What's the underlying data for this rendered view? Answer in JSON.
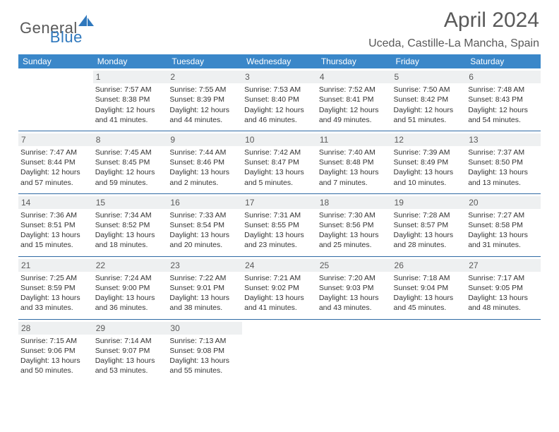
{
  "brand": {
    "part1": "General",
    "part2": "Blue"
  },
  "title": "April 2024",
  "location": "Uceda, Castille-La Mancha, Spain",
  "colors": {
    "header_bg": "#3a87c9",
    "header_text": "#ffffff",
    "rule": "#2f6aa4",
    "daynum_bg": "#eef0f1",
    "brand_gray": "#595959",
    "brand_blue": "#2f78bd"
  },
  "day_headers": [
    "Sunday",
    "Monday",
    "Tuesday",
    "Wednesday",
    "Thursday",
    "Friday",
    "Saturday"
  ],
  "weeks": [
    [
      {
        "n": "",
        "sunrise": "",
        "sunset": "",
        "daylight": ""
      },
      {
        "n": "1",
        "sunrise": "Sunrise: 7:57 AM",
        "sunset": "Sunset: 8:38 PM",
        "daylight": "Daylight: 12 hours and 41 minutes."
      },
      {
        "n": "2",
        "sunrise": "Sunrise: 7:55 AM",
        "sunset": "Sunset: 8:39 PM",
        "daylight": "Daylight: 12 hours and 44 minutes."
      },
      {
        "n": "3",
        "sunrise": "Sunrise: 7:53 AM",
        "sunset": "Sunset: 8:40 PM",
        "daylight": "Daylight: 12 hours and 46 minutes."
      },
      {
        "n": "4",
        "sunrise": "Sunrise: 7:52 AM",
        "sunset": "Sunset: 8:41 PM",
        "daylight": "Daylight: 12 hours and 49 minutes."
      },
      {
        "n": "5",
        "sunrise": "Sunrise: 7:50 AM",
        "sunset": "Sunset: 8:42 PM",
        "daylight": "Daylight: 12 hours and 51 minutes."
      },
      {
        "n": "6",
        "sunrise": "Sunrise: 7:48 AM",
        "sunset": "Sunset: 8:43 PM",
        "daylight": "Daylight: 12 hours and 54 minutes."
      }
    ],
    [
      {
        "n": "7",
        "sunrise": "Sunrise: 7:47 AM",
        "sunset": "Sunset: 8:44 PM",
        "daylight": "Daylight: 12 hours and 57 minutes."
      },
      {
        "n": "8",
        "sunrise": "Sunrise: 7:45 AM",
        "sunset": "Sunset: 8:45 PM",
        "daylight": "Daylight: 12 hours and 59 minutes."
      },
      {
        "n": "9",
        "sunrise": "Sunrise: 7:44 AM",
        "sunset": "Sunset: 8:46 PM",
        "daylight": "Daylight: 13 hours and 2 minutes."
      },
      {
        "n": "10",
        "sunrise": "Sunrise: 7:42 AM",
        "sunset": "Sunset: 8:47 PM",
        "daylight": "Daylight: 13 hours and 5 minutes."
      },
      {
        "n": "11",
        "sunrise": "Sunrise: 7:40 AM",
        "sunset": "Sunset: 8:48 PM",
        "daylight": "Daylight: 13 hours and 7 minutes."
      },
      {
        "n": "12",
        "sunrise": "Sunrise: 7:39 AM",
        "sunset": "Sunset: 8:49 PM",
        "daylight": "Daylight: 13 hours and 10 minutes."
      },
      {
        "n": "13",
        "sunrise": "Sunrise: 7:37 AM",
        "sunset": "Sunset: 8:50 PM",
        "daylight": "Daylight: 13 hours and 13 minutes."
      }
    ],
    [
      {
        "n": "14",
        "sunrise": "Sunrise: 7:36 AM",
        "sunset": "Sunset: 8:51 PM",
        "daylight": "Daylight: 13 hours and 15 minutes."
      },
      {
        "n": "15",
        "sunrise": "Sunrise: 7:34 AM",
        "sunset": "Sunset: 8:52 PM",
        "daylight": "Daylight: 13 hours and 18 minutes."
      },
      {
        "n": "16",
        "sunrise": "Sunrise: 7:33 AM",
        "sunset": "Sunset: 8:54 PM",
        "daylight": "Daylight: 13 hours and 20 minutes."
      },
      {
        "n": "17",
        "sunrise": "Sunrise: 7:31 AM",
        "sunset": "Sunset: 8:55 PM",
        "daylight": "Daylight: 13 hours and 23 minutes."
      },
      {
        "n": "18",
        "sunrise": "Sunrise: 7:30 AM",
        "sunset": "Sunset: 8:56 PM",
        "daylight": "Daylight: 13 hours and 25 minutes."
      },
      {
        "n": "19",
        "sunrise": "Sunrise: 7:28 AM",
        "sunset": "Sunset: 8:57 PM",
        "daylight": "Daylight: 13 hours and 28 minutes."
      },
      {
        "n": "20",
        "sunrise": "Sunrise: 7:27 AM",
        "sunset": "Sunset: 8:58 PM",
        "daylight": "Daylight: 13 hours and 31 minutes."
      }
    ],
    [
      {
        "n": "21",
        "sunrise": "Sunrise: 7:25 AM",
        "sunset": "Sunset: 8:59 PM",
        "daylight": "Daylight: 13 hours and 33 minutes."
      },
      {
        "n": "22",
        "sunrise": "Sunrise: 7:24 AM",
        "sunset": "Sunset: 9:00 PM",
        "daylight": "Daylight: 13 hours and 36 minutes."
      },
      {
        "n": "23",
        "sunrise": "Sunrise: 7:22 AM",
        "sunset": "Sunset: 9:01 PM",
        "daylight": "Daylight: 13 hours and 38 minutes."
      },
      {
        "n": "24",
        "sunrise": "Sunrise: 7:21 AM",
        "sunset": "Sunset: 9:02 PM",
        "daylight": "Daylight: 13 hours and 41 minutes."
      },
      {
        "n": "25",
        "sunrise": "Sunrise: 7:20 AM",
        "sunset": "Sunset: 9:03 PM",
        "daylight": "Daylight: 13 hours and 43 minutes."
      },
      {
        "n": "26",
        "sunrise": "Sunrise: 7:18 AM",
        "sunset": "Sunset: 9:04 PM",
        "daylight": "Daylight: 13 hours and 45 minutes."
      },
      {
        "n": "27",
        "sunrise": "Sunrise: 7:17 AM",
        "sunset": "Sunset: 9:05 PM",
        "daylight": "Daylight: 13 hours and 48 minutes."
      }
    ],
    [
      {
        "n": "28",
        "sunrise": "Sunrise: 7:15 AM",
        "sunset": "Sunset: 9:06 PM",
        "daylight": "Daylight: 13 hours and 50 minutes."
      },
      {
        "n": "29",
        "sunrise": "Sunrise: 7:14 AM",
        "sunset": "Sunset: 9:07 PM",
        "daylight": "Daylight: 13 hours and 53 minutes."
      },
      {
        "n": "30",
        "sunrise": "Sunrise: 7:13 AM",
        "sunset": "Sunset: 9:08 PM",
        "daylight": "Daylight: 13 hours and 55 minutes."
      },
      {
        "n": "",
        "sunrise": "",
        "sunset": "",
        "daylight": ""
      },
      {
        "n": "",
        "sunrise": "",
        "sunset": "",
        "daylight": ""
      },
      {
        "n": "",
        "sunrise": "",
        "sunset": "",
        "daylight": ""
      },
      {
        "n": "",
        "sunrise": "",
        "sunset": "",
        "daylight": ""
      }
    ]
  ]
}
